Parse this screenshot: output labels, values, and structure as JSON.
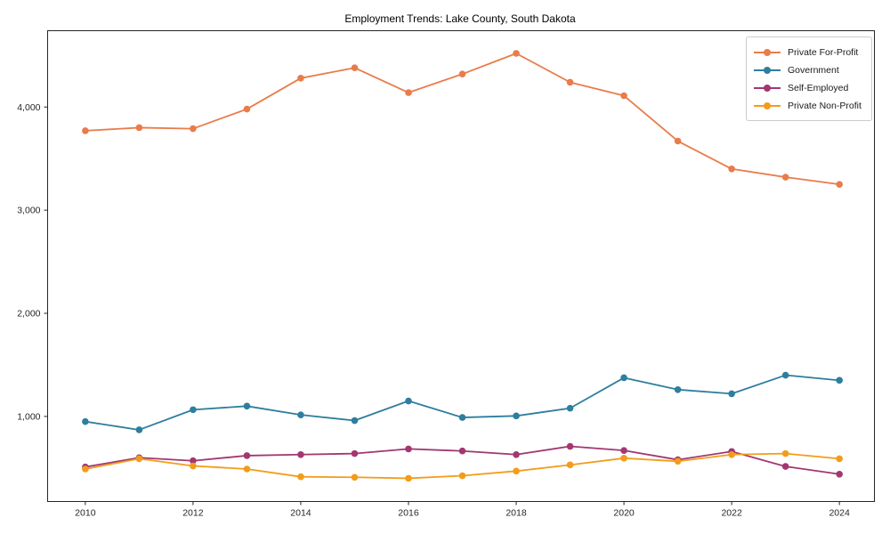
{
  "chart_data": {
    "type": "line",
    "title": "Employment Trends: Lake County, South Dakota",
    "x": [
      2010,
      2011,
      2012,
      2013,
      2014,
      2015,
      2016,
      2017,
      2018,
      2019,
      2020,
      2021,
      2022,
      2023,
      2024
    ],
    "series": [
      {
        "name": "Private For-Profit",
        "color": "#E87C4A",
        "values": [
          3770,
          3800,
          3790,
          3980,
          4280,
          4380,
          4140,
          4320,
          4520,
          4240,
          4110,
          3670,
          3400,
          3320,
          3250
        ]
      },
      {
        "name": "Government",
        "color": "#2E7E9E",
        "values": [
          950,
          870,
          1065,
          1100,
          1015,
          960,
          1150,
          990,
          1005,
          1080,
          1375,
          1260,
          1220,
          1400,
          1350
        ]
      },
      {
        "name": "Self-Employed",
        "color": "#A23771",
        "values": [
          510,
          600,
          570,
          620,
          630,
          640,
          685,
          665,
          630,
          710,
          670,
          580,
          660,
          515,
          440
        ]
      },
      {
        "name": "Private Non-Profit",
        "color": "#F39C1B",
        "values": [
          490,
          590,
          520,
          490,
          415,
          410,
          400,
          425,
          470,
          530,
          595,
          565,
          630,
          640,
          590
        ]
      }
    ],
    "x_ticks": {
      "values": [
        2010,
        2012,
        2014,
        2016,
        2018,
        2020,
        2022,
        2024
      ],
      "labels": [
        "2010",
        "2012",
        "2014",
        "2016",
        "2018",
        "2020",
        "2022",
        "2024"
      ]
    },
    "y_ticks": {
      "values": [
        1000,
        2000,
        3000,
        4000
      ],
      "labels": [
        "1,000",
        "2,000",
        "3,000",
        "4,000"
      ]
    },
    "xlim": [
      2009.3,
      2024.65
    ],
    "ylim": [
      175,
      4740
    ],
    "grid": false,
    "legend_position": "upper right",
    "axis_color": "#262626",
    "marker_radius": 3.8,
    "line_width": 1.8
  }
}
